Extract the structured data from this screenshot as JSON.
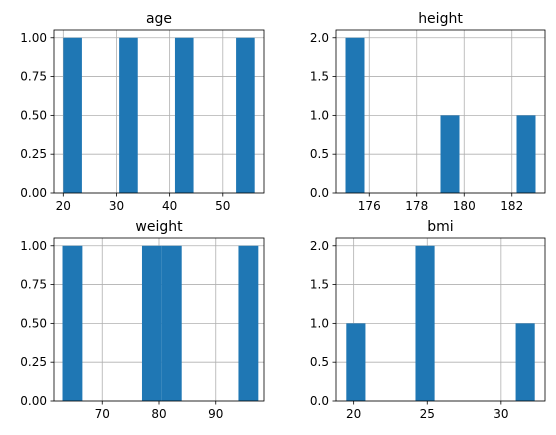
{
  "chart_data": [
    {
      "type": "bar",
      "title": "age",
      "xlabel": "",
      "ylabel": "",
      "xlim": [
        18.25,
        57.75
      ],
      "ylim": [
        0,
        1.05
      ],
      "grid": true,
      "color": "#1f77b4",
      "bins": [
        {
          "x0": 20.0,
          "x1": 23.5,
          "value": 1
        },
        {
          "x0": 30.5,
          "x1": 34.0,
          "value": 1
        },
        {
          "x0": 41.0,
          "x1": 44.5,
          "value": 1
        },
        {
          "x0": 52.5,
          "x1": 56.0,
          "value": 1
        }
      ],
      "xticks": [
        {
          "value": 20,
          "label": "20"
        },
        {
          "value": 30,
          "label": "30"
        },
        {
          "value": 40,
          "label": "40"
        },
        {
          "value": 50,
          "label": "50"
        }
      ],
      "yticks": [
        {
          "value": 0,
          "label": "0.00"
        },
        {
          "value": 0.25,
          "label": "0.25"
        },
        {
          "value": 0.5,
          "label": "0.50"
        },
        {
          "value": 0.75,
          "label": "0.75"
        },
        {
          "value": 1.0,
          "label": "1.00"
        }
      ]
    },
    {
      "type": "bar",
      "title": "height",
      "xlabel": "",
      "ylabel": "",
      "xlim": [
        174.6,
        183.4
      ],
      "ylim": [
        0,
        2.1
      ],
      "grid": true,
      "color": "#1f77b4",
      "bins": [
        {
          "x0": 175.0,
          "x1": 175.8,
          "value": 2
        },
        {
          "x0": 179.0,
          "x1": 179.8,
          "value": 1
        },
        {
          "x0": 182.2,
          "x1": 183.0,
          "value": 1
        }
      ],
      "xticks": [
        {
          "value": 176,
          "label": "176"
        },
        {
          "value": 178,
          "label": "178"
        },
        {
          "value": 180,
          "label": "180"
        },
        {
          "value": 182,
          "label": "182"
        }
      ],
      "yticks": [
        {
          "value": 0,
          "label": "0.0"
        },
        {
          "value": 0.5,
          "label": "0.5"
        },
        {
          "value": 1.0,
          "label": "1.0"
        },
        {
          "value": 1.5,
          "label": "1.5"
        },
        {
          "value": 2.0,
          "label": "2.0"
        }
      ]
    },
    {
      "type": "bar",
      "title": "weight",
      "xlabel": "",
      "ylabel": "",
      "xlim": [
        61.5,
        98.5
      ],
      "ylim": [
        0,
        1.05
      ],
      "grid": true,
      "color": "#1f77b4",
      "bins": [
        {
          "x0": 63.0,
          "x1": 66.5,
          "value": 1
        },
        {
          "x0": 77.0,
          "x1": 80.5,
          "value": 1
        },
        {
          "x0": 80.5,
          "x1": 84.0,
          "value": 1
        },
        {
          "x0": 94.0,
          "x1": 97.5,
          "value": 1
        }
      ],
      "xticks": [
        {
          "value": 70,
          "label": "70"
        },
        {
          "value": 80,
          "label": "80"
        },
        {
          "value": 90,
          "label": "90"
        }
      ],
      "yticks": [
        {
          "value": 0,
          "label": "0.00"
        },
        {
          "value": 0.25,
          "label": "0.25"
        },
        {
          "value": 0.5,
          "label": "0.50"
        },
        {
          "value": 0.75,
          "label": "0.75"
        },
        {
          "value": 1.0,
          "label": "1.00"
        }
      ]
    },
    {
      "type": "bar",
      "title": "bmi",
      "xlabel": "",
      "ylabel": "",
      "xlim": [
        18.8,
        33.0
      ],
      "ylim": [
        0,
        2.1
      ],
      "grid": true,
      "color": "#1f77b4",
      "bins": [
        {
          "x0": 19.5,
          "x1": 20.8,
          "value": 1
        },
        {
          "x0": 24.2,
          "x1": 25.5,
          "value": 2
        },
        {
          "x0": 31.0,
          "x1": 32.3,
          "value": 1
        }
      ],
      "xticks": [
        {
          "value": 20,
          "label": "20"
        },
        {
          "value": 25,
          "label": "25"
        },
        {
          "value": 30,
          "label": "30"
        }
      ],
      "yticks": [
        {
          "value": 0,
          "label": "0.0"
        },
        {
          "value": 0.5,
          "label": "0.5"
        },
        {
          "value": 1.0,
          "label": "1.0"
        },
        {
          "value": 1.5,
          "label": "1.5"
        },
        {
          "value": 2.0,
          "label": "2.0"
        }
      ]
    }
  ]
}
